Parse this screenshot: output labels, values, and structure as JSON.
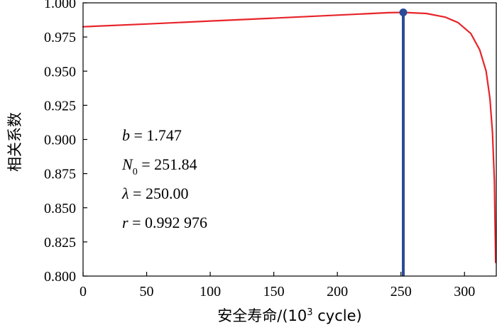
{
  "chart_data": {
    "type": "line",
    "xlabel_main": "安全寿命/(10",
    "xlabel_sup": "3",
    "xlabel_tail": " cycle)",
    "ylabel": "相关系数",
    "xlim": [
      0,
      325
    ],
    "ylim": [
      0.8,
      1.0
    ],
    "x_ticks": [
      0,
      50,
      100,
      150,
      200,
      250,
      300
    ],
    "y_ticks": [
      "0.800",
      "0.825",
      "0.850",
      "0.875",
      "0.900",
      "0.925",
      "0.950",
      "0.975",
      "1.000"
    ],
    "grid": false,
    "series": [
      {
        "color": "#e8242a",
        "x": [
          0,
          50,
          100,
          150,
          200,
          240,
          251.84,
          270,
          285,
          295,
          305,
          312,
          317,
          320,
          322,
          323.5,
          324.5
        ],
        "y": [
          0.9825,
          0.9845,
          0.9867,
          0.9888,
          0.991,
          0.9928,
          0.992976,
          0.9922,
          0.9895,
          0.9855,
          0.9775,
          0.9655,
          0.95,
          0.93,
          0.905,
          0.87,
          0.81
        ]
      }
    ],
    "marker": {
      "x": 251.84,
      "y": 0.992976,
      "color": "#2a4a9a"
    },
    "vertical_line": {
      "x": 251.84,
      "color": "#2a4a9a"
    },
    "annotations": [
      {
        "var": "b",
        "sub": "",
        "text": " = 1.747"
      },
      {
        "var": "N",
        "sub": "0",
        "text": " = 251.84"
      },
      {
        "var": "λ",
        "sub": "",
        "text": " = 250.00"
      },
      {
        "var": "r",
        "sub": "",
        "text": " = 0.992 976"
      }
    ]
  }
}
